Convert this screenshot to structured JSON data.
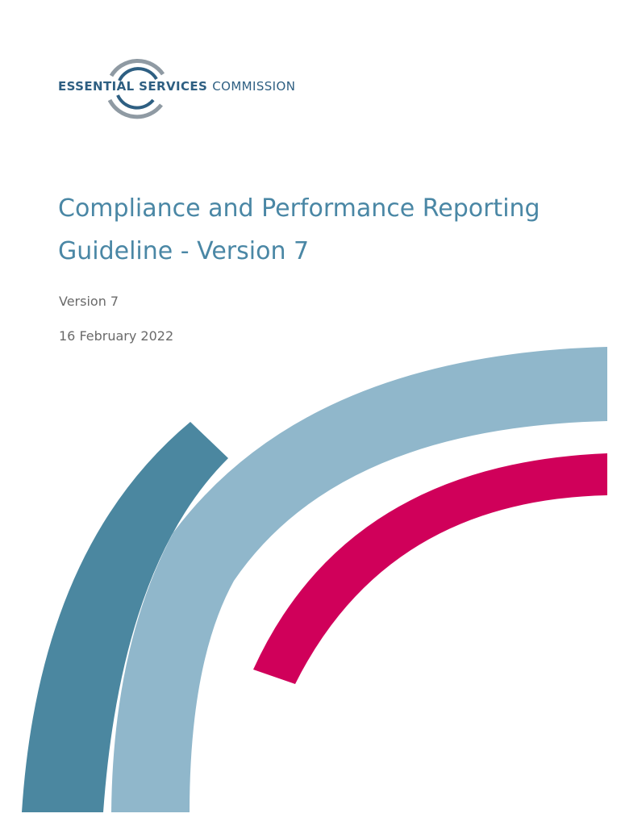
{
  "logo": {
    "name_bold": "ESSENTIAL SERVICES",
    "name_light": "COMMISSION",
    "colors": {
      "dark": "#2e5f82",
      "grey": "#8f9aa3"
    }
  },
  "document": {
    "title_line1": "Compliance and Performance Reporting",
    "title_line2": "Guideline - Version 7",
    "version": "Version 7",
    "date": "16 February 2022"
  },
  "decoration": {
    "colors": {
      "teal": "#4b87a0",
      "light_blue": "#90b7cb",
      "crimson": "#d0005a"
    }
  }
}
